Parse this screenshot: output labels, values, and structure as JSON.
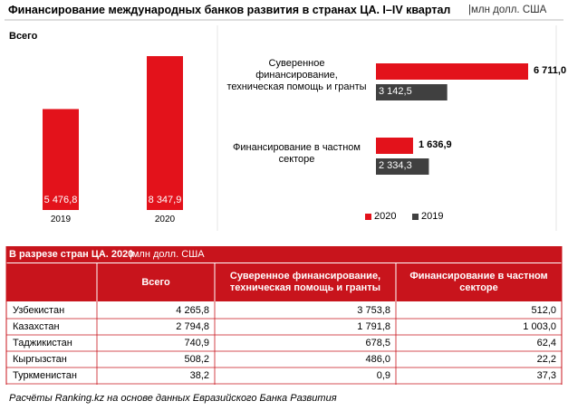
{
  "header": {
    "title": "Финансирование международных банков развития  в странах ЦА. I–IV квартал",
    "unit": "|млн долл. США"
  },
  "chart_data": [
    {
      "type": "bar",
      "title": "Всего",
      "categories": [
        "2019",
        "2020"
      ],
      "values": [
        5476.8,
        8347.9
      ],
      "value_labels": [
        "5 476,8",
        "8 347,9"
      ],
      "color": "#e3121b"
    },
    {
      "type": "hbar",
      "categories": [
        "Суверенное финансирование, техническая помощь и гранты",
        "Финансирование в частном секторе"
      ],
      "series": [
        {
          "name": "2020",
          "color": "#e3121b",
          "values": [
            6711.0,
            1636.9
          ],
          "value_labels": [
            "6 711,0",
            "1 636,9"
          ]
        },
        {
          "name": "2019",
          "color": "#404040",
          "values": [
            3142.5,
            2334.3
          ],
          "value_labels": [
            "3 142,5",
            "2 334,3"
          ]
        }
      ],
      "legend": "bottom"
    }
  ],
  "table": {
    "title": "В разрезе стран ЦА. 2020",
    "unit": "|млн долл. США",
    "columns": [
      "Всего",
      "Суверенное финансирование, техническая помощь и гранты",
      "Финансирование в частном секторе"
    ],
    "rows": [
      [
        "Узбекистан",
        "4 265,8",
        "3 753,8",
        "512,0"
      ],
      [
        "Казахстан",
        "2 794,8",
        "1 791,8",
        "1 003,0"
      ],
      [
        "Таджикистан",
        "740,9",
        "678,5",
        "62,4"
      ],
      [
        "Кыргызстан",
        "508,2",
        "486,0",
        "22,2"
      ],
      [
        "Туркменистан",
        "38,2",
        "0,9",
        "37,3"
      ]
    ],
    "footer": "Расчёты Ranking.kz на основе данных Евразийского Банка Развития"
  }
}
